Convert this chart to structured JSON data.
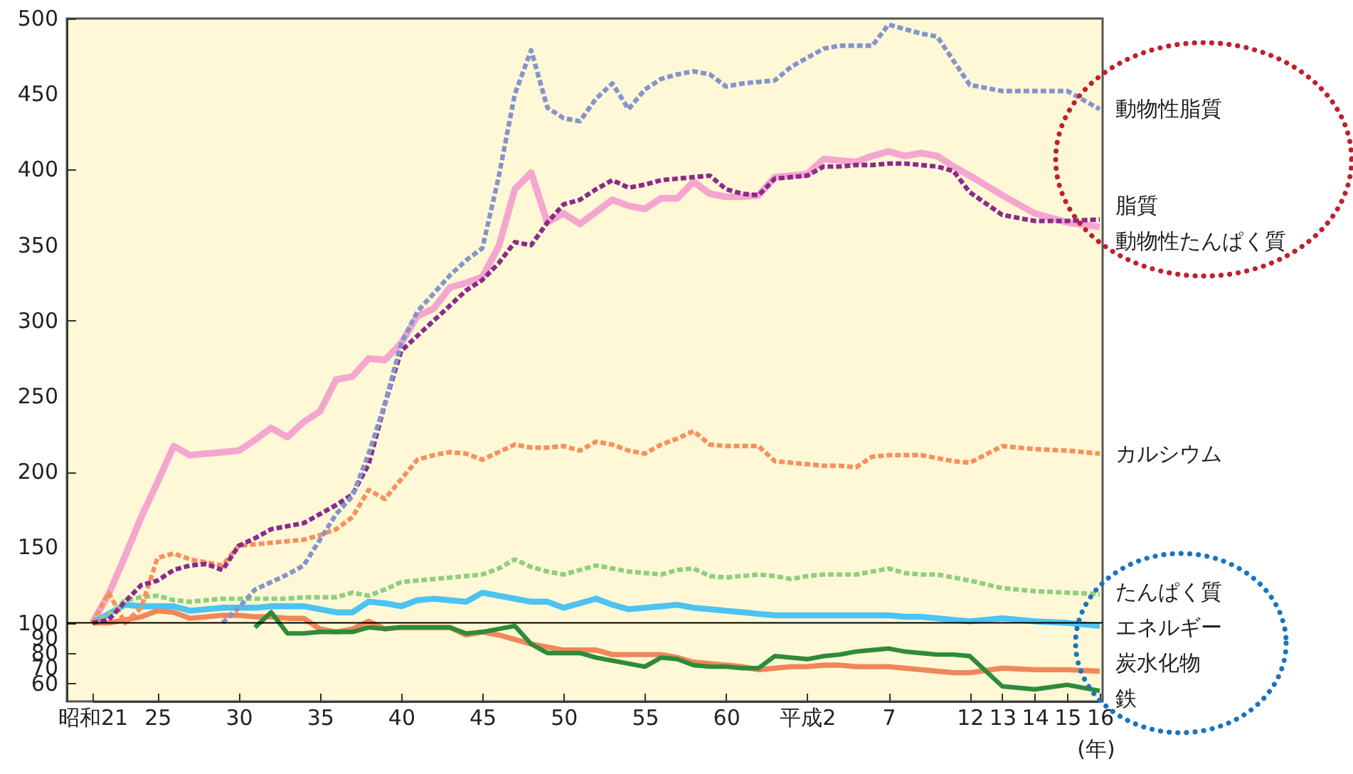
{
  "chart_data": {
    "type": "line",
    "xlabel": "(年)",
    "categories": [
      "昭和21",
      null,
      null,
      null,
      "25",
      null,
      null,
      null,
      null,
      "30",
      null,
      null,
      null,
      null,
      "35",
      null,
      null,
      null,
      null,
      "40",
      null,
      null,
      null,
      null,
      "45",
      null,
      null,
      null,
      null,
      "50",
      null,
      null,
      null,
      null,
      "55",
      null,
      null,
      null,
      null,
      "60",
      null,
      null,
      null,
      null,
      "平成2",
      null,
      null,
      null,
      null,
      "7",
      null,
      null,
      null,
      null,
      "12",
      "13",
      "14",
      "15",
      "16"
    ],
    "ylim": [
      48,
      500
    ],
    "yticks": [
      60,
      70,
      80,
      90,
      100,
      150,
      200,
      250,
      300,
      350,
      400,
      450,
      500
    ],
    "grid": false,
    "ref_lines": [
      {
        "axis": "y",
        "value": 100,
        "color": "#000000"
      }
    ],
    "series": [
      {
        "name": "動物性脂質",
        "color": "#8494cc",
        "line_style": "dashed",
        "values": [
          null,
          null,
          null,
          null,
          null,
          null,
          null,
          null,
          100,
          110,
          122,
          127,
          132,
          138,
          155,
          172,
          184,
          212,
          245,
          285,
          306,
          318,
          330,
          340,
          348,
          395,
          450,
          479,
          441,
          434,
          432,
          447,
          457,
          440,
          453,
          460,
          463,
          465,
          463,
          455,
          457,
          458,
          459,
          468,
          474,
          480,
          482,
          482,
          482,
          496,
          493,
          490,
          488,
          472,
          456,
          452,
          452,
          452,
          440
        ]
      },
      {
        "name": "脂質",
        "color": "#f4a6cf",
        "line_style": "solid",
        "values": [
          100,
          119,
          144,
          170,
          193,
          217,
          211,
          212,
          213,
          214,
          221,
          229,
          223,
          233,
          240,
          261,
          263,
          275,
          274,
          285,
          303,
          308,
          322,
          325,
          329,
          349,
          387,
          398,
          365,
          371,
          364,
          372,
          380,
          376,
          374,
          381,
          381,
          392,
          384,
          382,
          382,
          383,
          395,
          396,
          397,
          407,
          406,
          405,
          409,
          412,
          409,
          411,
          409,
          402,
          396,
          383,
          371,
          365,
          362
        ]
      },
      {
        "name": "動物性たんぱく質",
        "color": "#8b2a8c",
        "line_style": "dashed",
        "values": [
          100,
          102,
          114,
          125,
          128,
          135,
          138,
          139,
          135,
          151,
          156,
          162,
          164,
          166,
          172,
          178,
          185,
          205,
          245,
          280,
          290,
          300,
          310,
          320,
          327,
          338,
          352,
          350,
          365,
          377,
          380,
          387,
          393,
          388,
          390,
          393,
          394,
          395,
          396,
          387,
          384,
          383,
          394,
          395,
          396,
          402,
          402,
          403,
          403,
          404,
          404,
          403,
          402,
          399,
          385,
          370,
          366,
          366,
          367
        ]
      },
      {
        "name": "カルシウム",
        "color": "#f79060",
        "line_style": "dashed",
        "values": [
          100,
          120,
          100,
          110,
          143,
          146,
          142,
          140,
          138,
          151,
          152,
          153,
          154,
          155,
          158,
          162,
          170,
          188,
          182,
          195,
          208,
          211,
          213,
          212,
          208,
          213,
          218,
          216,
          216,
          217,
          214,
          220,
          218,
          214,
          212,
          218,
          222,
          227,
          218,
          217,
          217,
          217,
          207,
          206,
          205,
          204,
          204,
          203,
          210,
          211,
          211,
          211,
          209,
          207,
          206,
          217,
          215,
          214,
          212
        ]
      },
      {
        "name": "たんぱく質",
        "color": "#8fcf7f",
        "line_style": "dashed",
        "values": [
          100,
          105,
          115,
          117,
          118,
          115,
          114,
          115,
          116,
          116,
          116,
          116,
          116,
          117,
          117,
          117,
          120,
          118,
          122,
          127,
          128,
          129,
          130,
          131,
          132,
          136,
          142,
          137,
          134,
          132,
          135,
          138,
          136,
          134,
          133,
          132,
          135,
          136,
          131,
          130,
          131,
          132,
          131,
          129,
          131,
          132,
          132,
          132,
          134,
          136,
          133,
          132,
          132,
          130,
          128,
          123,
          121,
          120,
          119
        ]
      },
      {
        "name": "エネルギー",
        "color": "#4cc3f0",
        "line_style": "solid",
        "values": [
          100,
          106,
          112,
          111,
          111,
          111,
          108,
          109,
          110,
          110,
          110,
          111,
          111,
          111,
          109,
          107,
          107,
          114,
          113,
          111,
          115,
          116,
          115,
          114,
          120,
          118,
          116,
          114,
          114,
          110,
          113,
          116,
          112,
          109,
          110,
          111,
          112,
          110,
          109,
          108,
          107,
          106,
          105,
          105,
          105,
          105,
          105,
          105,
          105,
          105,
          104,
          104,
          103,
          102,
          101,
          103,
          101,
          100,
          98
        ]
      },
      {
        "name": "炭水化物",
        "color": "#f0875a",
        "line_style": "solid",
        "values": [
          100,
          100,
          102,
          104,
          108,
          107,
          103,
          104,
          105,
          105,
          104,
          104,
          103,
          103,
          96,
          94,
          96,
          101,
          96,
          97,
          97,
          97,
          97,
          92,
          94,
          92,
          89,
          86,
          84,
          82,
          82,
          82,
          79,
          79,
          79,
          79,
          77,
          74,
          73,
          72,
          71,
          69,
          70,
          71,
          71,
          72,
          72,
          71,
          71,
          71,
          70,
          69,
          68,
          67,
          67,
          70,
          69,
          69,
          68
        ]
      },
      {
        "name": "鉄",
        "color": "#2e8b3a",
        "line_style": "solid",
        "values": [
          null,
          null,
          null,
          null,
          null,
          null,
          null,
          null,
          null,
          null,
          97,
          107,
          93,
          93,
          94,
          94,
          94,
          97,
          96,
          97,
          97,
          97,
          97,
          93,
          94,
          96,
          98,
          86,
          80,
          80,
          80,
          77,
          75,
          73,
          71,
          77,
          76,
          72,
          71,
          71,
          70,
          70,
          78,
          77,
          76,
          78,
          79,
          81,
          82,
          83,
          81,
          80,
          79,
          79,
          78,
          58,
          56,
          59,
          55
        ]
      }
    ]
  }
}
